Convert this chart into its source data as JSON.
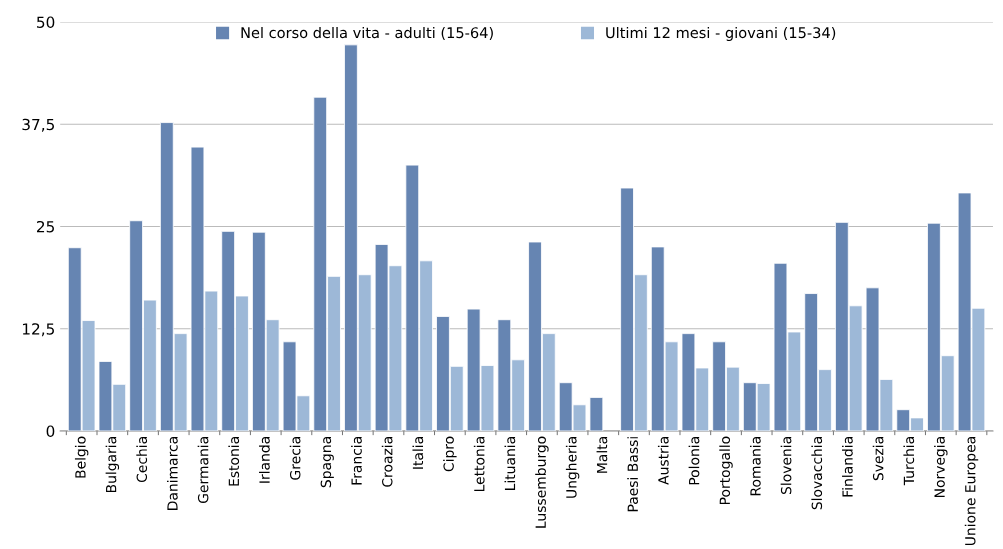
{
  "chart_data": {
    "type": "bar",
    "categories": [
      "Belgio",
      "Bulgaria",
      "Cechia",
      "Danimarca",
      "Germania",
      "Estonia",
      "Irlanda",
      "Grecia",
      "Spagna",
      "Francia",
      "Croazia",
      "Italia",
      "Cipro",
      "Lettonia",
      "Lituania",
      "Lussemburgo",
      "Ungheria",
      "Malta",
      "Paesi Bassi",
      "Austria",
      "Polonia",
      "Portogallo",
      "Romania",
      "Slovenia",
      "Slovacchia",
      "Finlandia",
      "Svezia",
      "Turchia",
      "Norvegia",
      "Unione Europea"
    ],
    "series": [
      {
        "name": "Nel corso della vita - adulti (15-64)",
        "color": "#6685b2",
        "values": [
          22.4,
          8.5,
          25.7,
          37.7,
          34.7,
          24.4,
          24.3,
          10.9,
          40.8,
          47.2,
          22.8,
          32.5,
          14.0,
          14.9,
          13.6,
          23.1,
          5.9,
          4.1,
          29.7,
          22.5,
          11.9,
          10.9,
          5.9,
          20.5,
          16.8,
          25.5,
          17.5,
          2.6,
          25.4,
          29.1
        ]
      },
      {
        "name": "Ultimi 12 mesi - giovani (15-34)",
        "color": "#9db8d7",
        "values": [
          13.5,
          5.7,
          16.0,
          11.9,
          17.1,
          16.5,
          13.6,
          4.3,
          18.9,
          19.1,
          20.2,
          20.8,
          7.9,
          8.0,
          8.7,
          11.9,
          3.2,
          null,
          19.1,
          10.9,
          7.7,
          7.8,
          5.8,
          12.1,
          7.5,
          15.3,
          6.3,
          1.6,
          9.2,
          15.0
        ]
      }
    ],
    "ylim": [
      0,
      50
    ],
    "yticks": [
      0,
      {
        "value": 12.5,
        "label": "12,5"
      },
      25,
      {
        "value": 37.5,
        "label": "37,5"
      },
      50
    ],
    "grid": "y",
    "legend": "top"
  }
}
